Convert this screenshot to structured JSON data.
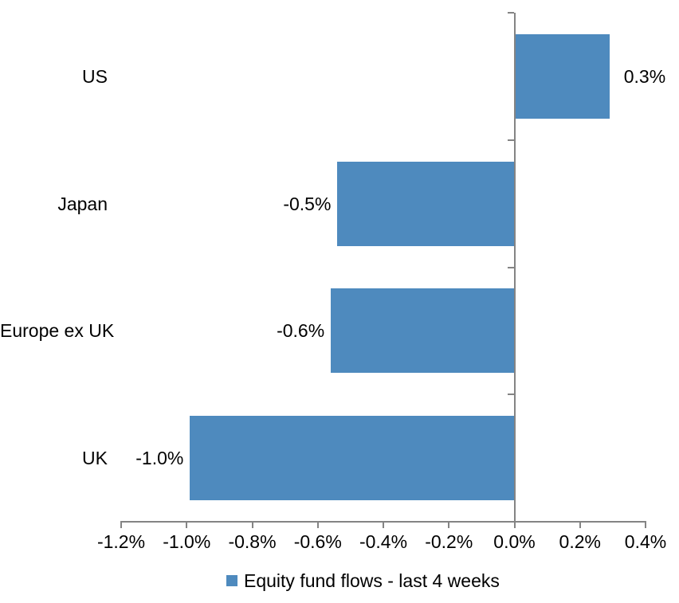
{
  "chart_data": {
    "type": "bar",
    "orientation": "horizontal",
    "title": "",
    "categories": [
      "US",
      "Japan",
      "Europe ex UK",
      "UK"
    ],
    "values": [
      0.29,
      -0.54,
      -0.56,
      -0.99
    ],
    "value_labels": [
      "0.3%",
      "-0.5%",
      "-0.6%",
      "-1.0%"
    ],
    "x_axis": {
      "min": -1.2,
      "max": 0.4,
      "tick_step": 0.2,
      "tick_labels": [
        "-1.2%",
        "-1.0%",
        "-0.8%",
        "-0.6%",
        "-0.4%",
        "-0.2%",
        "0.0%",
        "0.2%",
        "0.4%"
      ]
    },
    "grid": "off",
    "legend": {
      "label": "Equity fund flows - last 4 weeks",
      "position": "bottom"
    },
    "colors": {
      "bar": "#4e8abe",
      "axis": "#848484",
      "text": "#000000"
    }
  }
}
